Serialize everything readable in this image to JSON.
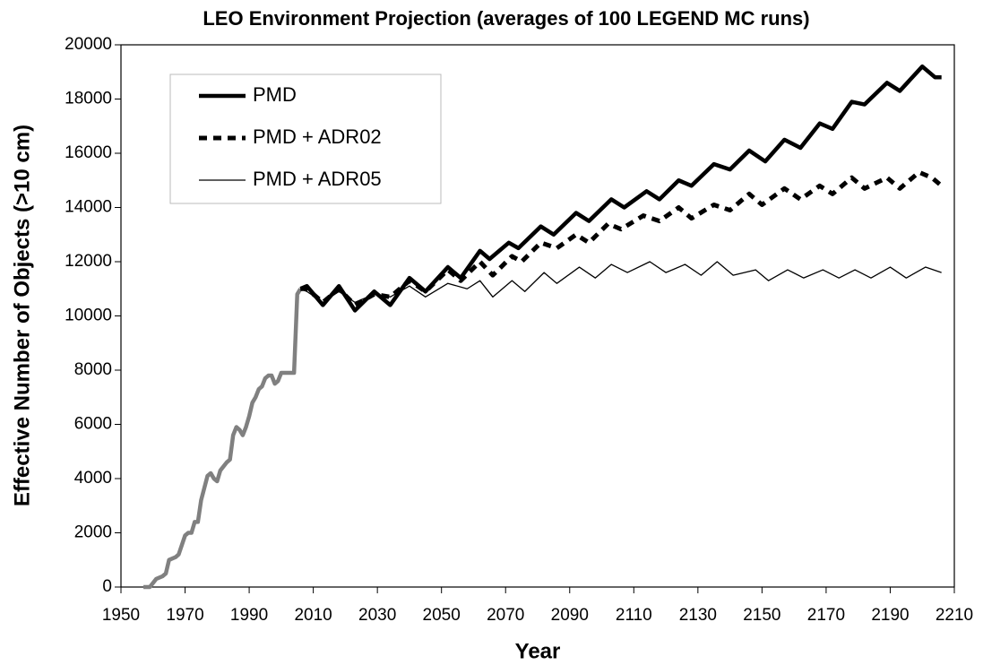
{
  "chart_data": {
    "type": "line",
    "title": "LEO Environment Projection (averages of 100 LEGEND MC runs)",
    "x_label": "Year",
    "y_label": "Effective Number of Objects (>10 cm)",
    "xlim": [
      1950,
      2210
    ],
    "xticks": [
      1950,
      1970,
      1990,
      2010,
      2030,
      2050,
      2070,
      2090,
      2110,
      2130,
      2150,
      2170,
      2190,
      2210
    ],
    "ylim": [
      0,
      20000
    ],
    "yticks": [
      0,
      2000,
      4000,
      6000,
      8000,
      10000,
      12000,
      14000,
      16000,
      18000,
      20000
    ],
    "grid": false,
    "legend": "upper left",
    "series": [
      {
        "color": "#808080",
        "line_style": "thick",
        "x": [
          1957,
          1959,
          1961,
          1963,
          1964,
          1965,
          1967,
          1968,
          1970,
          1971,
          1972,
          1973,
          1974,
          1975,
          1977,
          1978,
          1979,
          1980,
          1981,
          1983,
          1984,
          1985,
          1986,
          1987,
          1988,
          1989,
          1990,
          1991,
          1992,
          1993,
          1994,
          1995,
          1996,
          1997,
          1998,
          1999,
          2000,
          2001,
          2004,
          2005,
          2006
        ],
        "values": [
          0,
          0,
          300,
          400,
          500,
          1000,
          1100,
          1200,
          1900,
          2000,
          2000,
          2400,
          2400,
          3200,
          4100,
          4200,
          4000,
          3900,
          4300,
          4600,
          4700,
          5600,
          5900,
          5800,
          5600,
          5900,
          6300,
          6800,
          7000,
          7300,
          7400,
          7700,
          7800,
          7800,
          7500,
          7600,
          7900,
          7900,
          7900,
          10800,
          11000
        ]
      },
      {
        "name": "PMD",
        "color": "#000000",
        "line_style": "thick",
        "x": [
          2006,
          2008,
          2013,
          2018,
          2023,
          2029,
          2034,
          2040,
          2045,
          2052,
          2056,
          2062,
          2065,
          2071,
          2074,
          2081,
          2085,
          2092,
          2096,
          2103,
          2107,
          2114,
          2118,
          2124,
          2128,
          2135,
          2140,
          2146,
          2151,
          2157,
          2162,
          2168,
          2172,
          2178,
          2182,
          2189,
          2193,
          2200,
          2204,
          2206
        ],
        "values": [
          11000,
          11100,
          10400,
          11100,
          10200,
          10900,
          10400,
          11400,
          10900,
          11800,
          11400,
          12400,
          12100,
          12700,
          12500,
          13300,
          13000,
          13800,
          13500,
          14300,
          14000,
          14600,
          14300,
          15000,
          14800,
          15600,
          15400,
          16100,
          15700,
          16500,
          16200,
          17100,
          16900,
          17900,
          17800,
          18600,
          18300,
          19200,
          18800,
          18800
        ]
      },
      {
        "name": "PMD + ADR02",
        "color": "#000000",
        "line_style": "dashed",
        "x": [
          2006,
          2008,
          2013,
          2018,
          2023,
          2029,
          2034,
          2040,
          2045,
          2052,
          2056,
          2062,
          2066,
          2072,
          2075,
          2081,
          2086,
          2092,
          2096,
          2102,
          2106,
          2113,
          2118,
          2124,
          2128,
          2135,
          2140,
          2146,
          2150,
          2157,
          2162,
          2168,
          2172,
          2178,
          2182,
          2189,
          2193,
          2199,
          2203,
          2206
        ],
        "values": [
          11000,
          11000,
          10500,
          11000,
          10400,
          10800,
          10700,
          11300,
          10900,
          11700,
          11300,
          12000,
          11500,
          12200,
          12000,
          12700,
          12500,
          13000,
          12700,
          13400,
          13200,
          13700,
          13500,
          14000,
          13600,
          14100,
          13900,
          14500,
          14100,
          14700,
          14300,
          14800,
          14500,
          15100,
          14700,
          15100,
          14700,
          15300,
          15100,
          14800
        ]
      },
      {
        "name": "PMD + ADR05",
        "color": "#000000",
        "line_style": "thin",
        "x": [
          2006,
          2008,
          2013,
          2018,
          2023,
          2029,
          2034,
          2040,
          2045,
          2052,
          2058,
          2062,
          2066,
          2072,
          2076,
          2082,
          2086,
          2093,
          2098,
          2103,
          2108,
          2115,
          2120,
          2126,
          2131,
          2136,
          2141,
          2148,
          2152,
          2158,
          2163,
          2169,
          2174,
          2179,
          2184,
          2190,
          2195,
          2201,
          2206
        ],
        "values": [
          11000,
          10900,
          10500,
          10900,
          10500,
          10800,
          10700,
          11100,
          10700,
          11200,
          11000,
          11300,
          10700,
          11300,
          10900,
          11600,
          11200,
          11800,
          11400,
          11900,
          11600,
          12000,
          11600,
          11900,
          11500,
          12000,
          11500,
          11700,
          11300,
          11700,
          11400,
          11700,
          11400,
          11700,
          11400,
          11800,
          11400,
          11800,
          11600
        ]
      }
    ]
  }
}
